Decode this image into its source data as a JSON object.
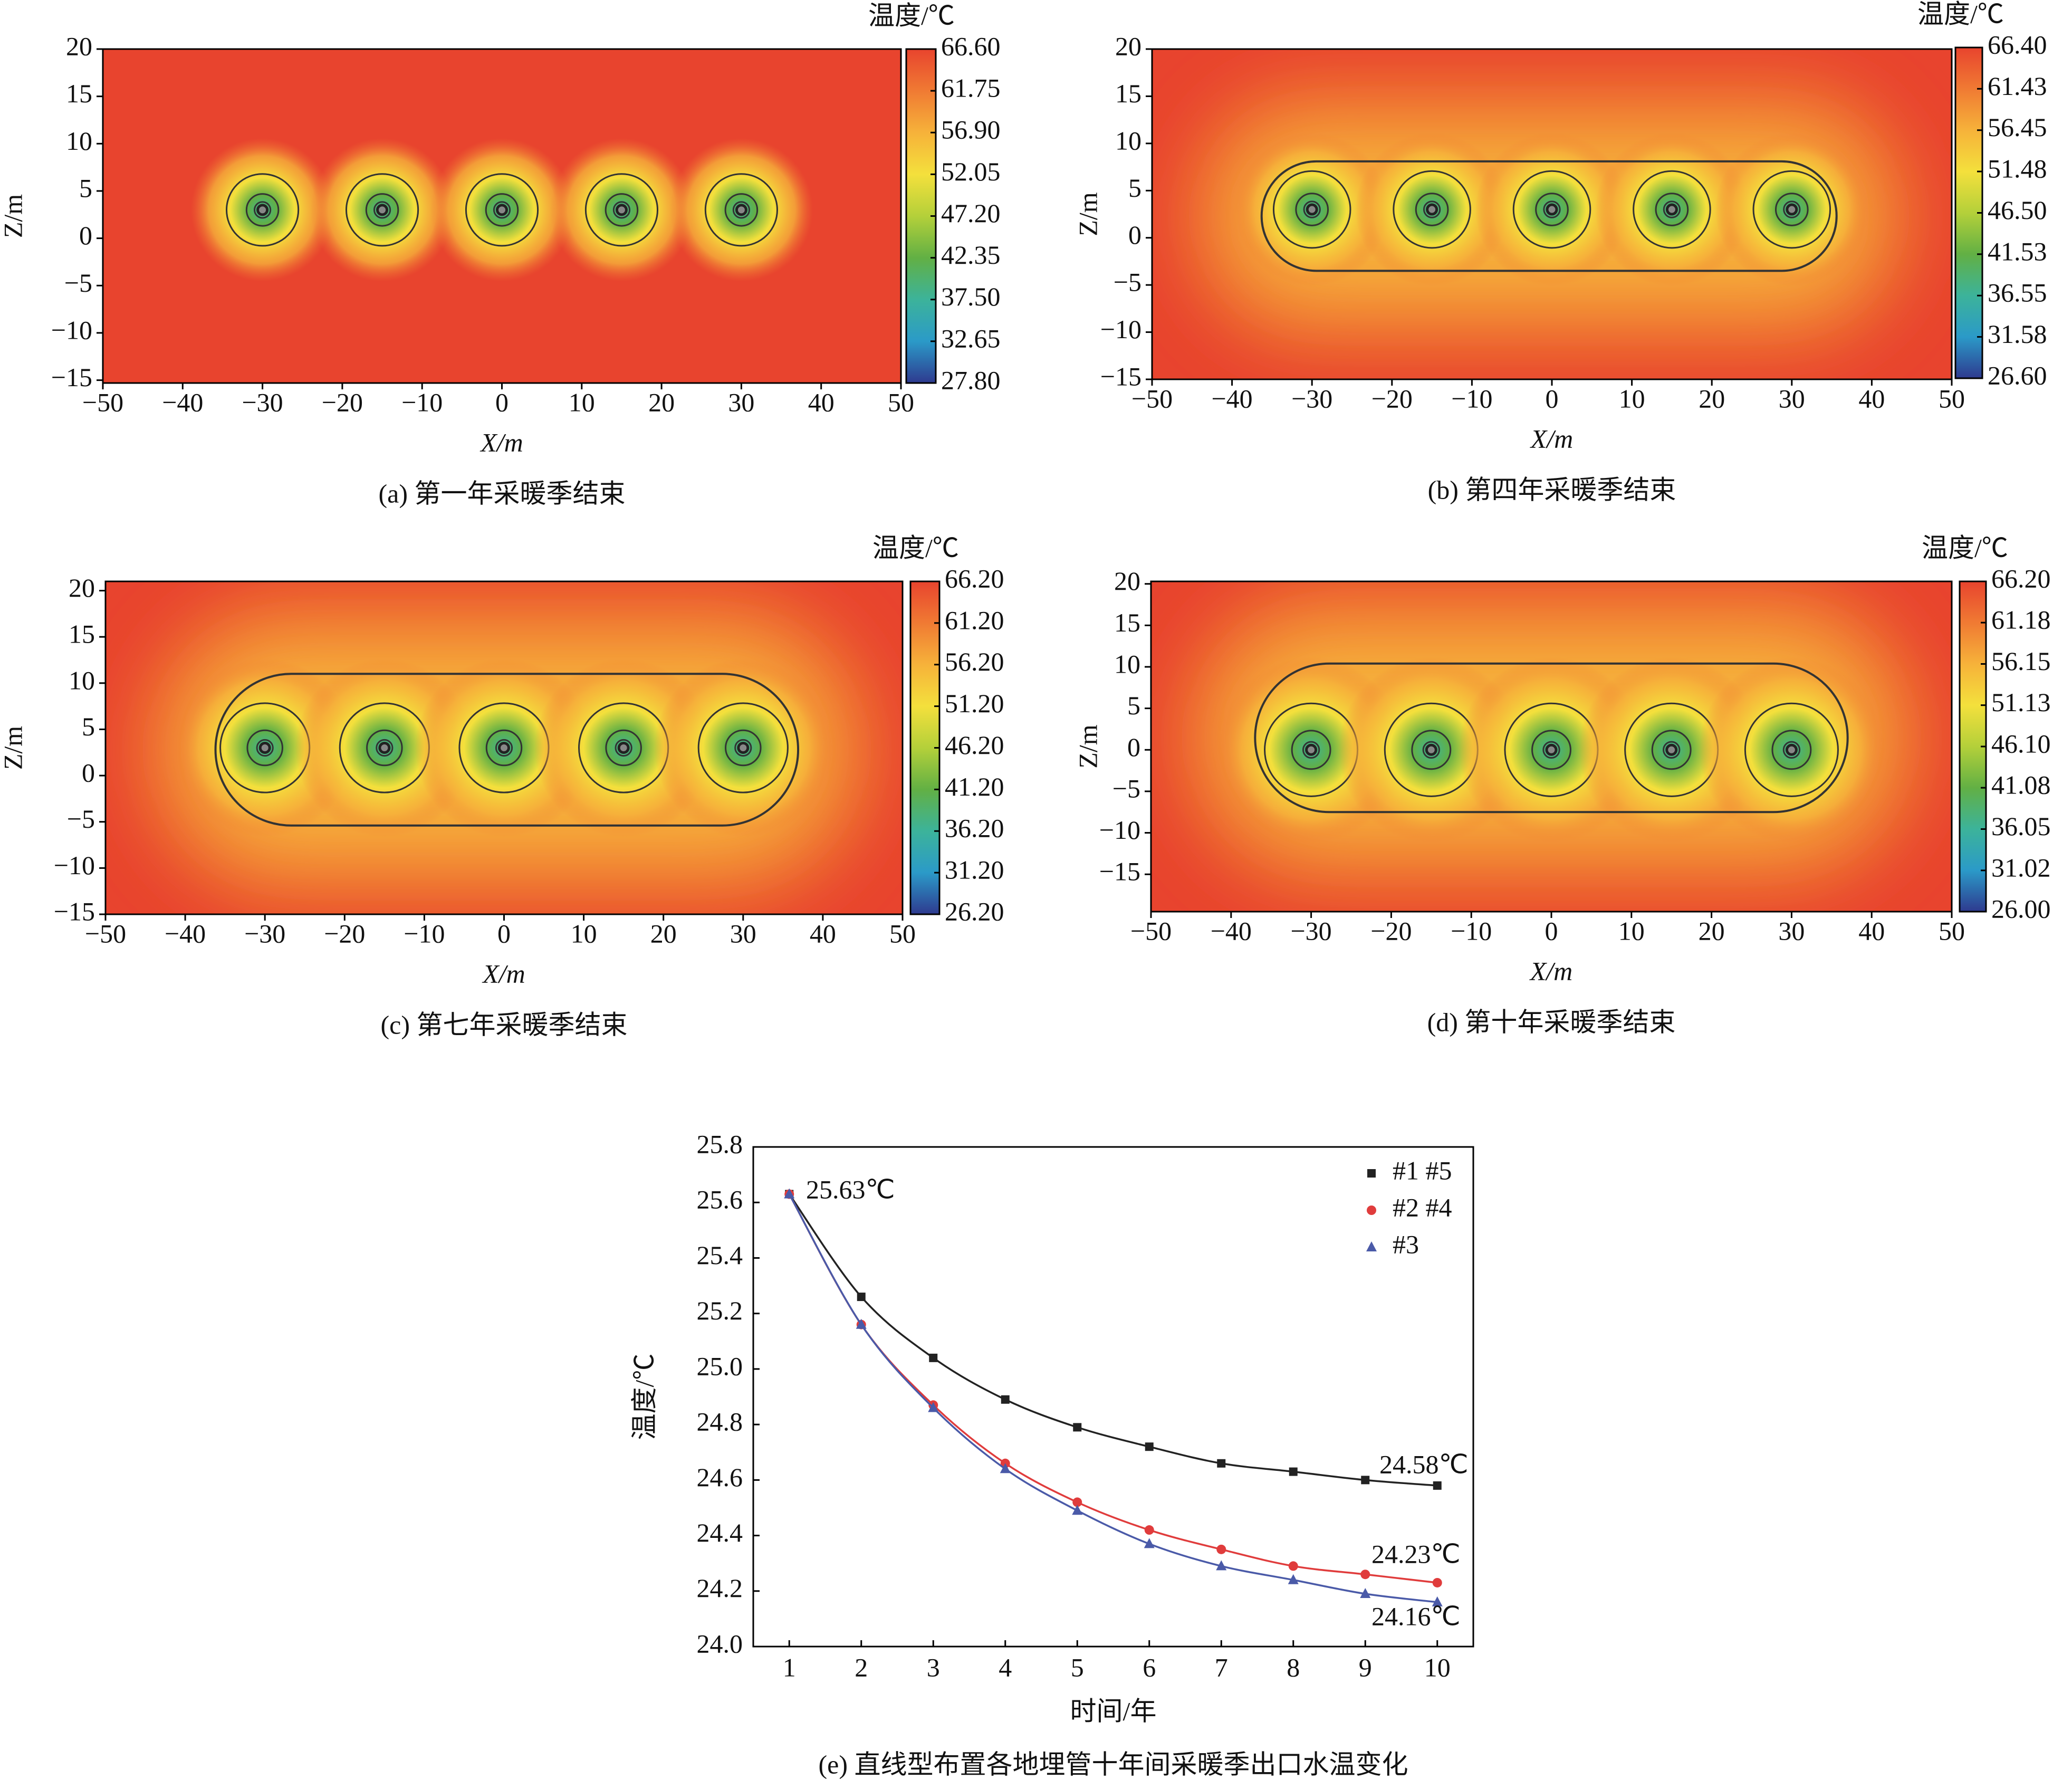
{
  "chart_data": [
    {
      "type": "contour",
      "title": "(a) 第一年采暖季结束",
      "xlabel": "X/m",
      "ylabel": "Z/m",
      "colorbar_label": "温度/℃",
      "xlim": [
        -50,
        50
      ],
      "ylim": [
        -15.3,
        20
      ],
      "xticks": [
        {
          "value": -50,
          "label": "−50"
        },
        {
          "value": -40,
          "label": "−40"
        },
        {
          "value": -30,
          "label": "−30"
        },
        {
          "value": -20,
          "label": "−20"
        },
        {
          "value": -10,
          "label": "−10"
        },
        0,
        10,
        20,
        30,
        40,
        50
      ],
      "yticks": [
        {
          "value": -15,
          "label": "−15"
        },
        {
          "value": -10,
          "label": "−10"
        },
        {
          "value": -5,
          "label": "−5"
        },
        0,
        5,
        10,
        15,
        20
      ],
      "colorbar_lim": [
        27.8,
        66.6
      ],
      "colorbar_ticks": [
        {
          "value": 27.8,
          "label": "27.80"
        },
        32.65,
        {
          "value": 37.5,
          "label": "37.50"
        },
        42.35,
        {
          "value": 47.2,
          "label": "47.20"
        },
        52.05,
        {
          "value": 56.9,
          "label": "56.90"
        },
        61.75,
        {
          "value": 66.6,
          "label": "66.60"
        }
      ],
      "colormap": [
        "#2e3a8f",
        "#2b9ac8",
        "#3cb39a",
        "#62b044",
        "#b4d03a",
        "#f4e03c",
        "#f6b23a",
        "#f07a33",
        "#e8442e"
      ],
      "boreholes": {
        "x": [
          -30,
          -15,
          0,
          15,
          30
        ],
        "z": 3
      },
      "rings": [
        4.5,
        2,
        1
      ]
    },
    {
      "type": "contour",
      "title": "(b) 第四年采暖季结束",
      "xlabel": "X/m",
      "ylabel": "Z/m",
      "colorbar_label": "温度/℃",
      "xlim": [
        -50,
        50
      ],
      "ylim": [
        -15,
        20
      ],
      "xticks": [
        {
          "value": -50,
          "label": "−50"
        },
        {
          "value": -40,
          "label": "−40"
        },
        {
          "value": -30,
          "label": "−30"
        },
        {
          "value": -20,
          "label": "−20"
        },
        {
          "value": -10,
          "label": "−10"
        },
        0,
        10,
        20,
        30,
        40,
        50
      ],
      "yticks": [
        {
          "value": -15,
          "label": "−15"
        },
        {
          "value": -10,
          "label": "−10"
        },
        {
          "value": -5,
          "label": "−5"
        },
        0,
        5,
        10,
        15,
        20
      ],
      "colorbar_lim": [
        26.6,
        66.4
      ],
      "colorbar_ticks": [
        {
          "value": 26.6,
          "label": "26.60"
        },
        31.58,
        36.55,
        41.53,
        {
          "value": 46.5,
          "label": "46.50"
        },
        51.48,
        56.45,
        61.43,
        {
          "value": 66.4,
          "label": "66.40"
        }
      ],
      "colormap": [
        "#2e3a8f",
        "#2b9ac8",
        "#3cb39a",
        "#62b044",
        "#b4d03a",
        "#f4e03c",
        "#f6b23a",
        "#f07a33",
        "#e8442e"
      ],
      "boreholes": {
        "x": [
          -30,
          -15,
          0,
          15,
          30
        ],
        "z": 3
      },
      "rings": [
        4.8,
        2,
        1
      ],
      "envelope": [
        -36.3,
        35.6,
        -3.5,
        8.1
      ]
    },
    {
      "type": "contour",
      "title": "(c) 第七年采暖季结束",
      "xlabel": "X/m",
      "ylabel": "Z/m",
      "colorbar_label": "温度/℃",
      "xlim": [
        -50,
        50
      ],
      "ylim": [
        -15,
        21
      ],
      "xticks": [
        {
          "value": -50,
          "label": "−50"
        },
        {
          "value": -40,
          "label": "−40"
        },
        {
          "value": -30,
          "label": "−30"
        },
        {
          "value": -20,
          "label": "−20"
        },
        {
          "value": -10,
          "label": "−10"
        },
        0,
        10,
        20,
        30,
        40,
        50
      ],
      "yticks": [
        {
          "value": -15,
          "label": "−15"
        },
        {
          "value": -10,
          "label": "−10"
        },
        {
          "value": -5,
          "label": "−5"
        },
        0,
        5,
        10,
        15,
        20
      ],
      "colorbar_lim": [
        26.2,
        66.2
      ],
      "colorbar_ticks": [
        {
          "value": 26.2,
          "label": "26.20"
        },
        {
          "value": 31.2,
          "label": "31.20"
        },
        {
          "value": 36.2,
          "label": "36.20"
        },
        {
          "value": 41.2,
          "label": "41.20"
        },
        {
          "value": 46.2,
          "label": "46.20"
        },
        {
          "value": 51.2,
          "label": "51.20"
        },
        {
          "value": 56.2,
          "label": "56.20"
        },
        {
          "value": 61.2,
          "label": "61.20"
        },
        {
          "value": 66.2,
          "label": "66.20"
        }
      ],
      "colormap": [
        "#2e3a8f",
        "#2b9ac8",
        "#3cb39a",
        "#62b044",
        "#b4d03a",
        "#f4e03c",
        "#f6b23a",
        "#f07a33",
        "#e8442e"
      ],
      "boreholes": {
        "x": [
          -30,
          -15,
          0,
          15,
          30
        ],
        "z": 3
      },
      "rings": [
        5.6,
        2.2,
        1
      ],
      "envelope": [
        -36.2,
        36.9,
        -5.4,
        11
      ]
    },
    {
      "type": "contour",
      "title": "(d) 第十年采暖季结束",
      "xlabel": "X/m",
      "ylabel": "Z/m",
      "colorbar_label": "温度/℃",
      "xlim": [
        -50,
        50
      ],
      "ylim": [
        -19.5,
        20.3
      ],
      "xticks": [
        {
          "value": -50,
          "label": "−50"
        },
        {
          "value": -40,
          "label": "−40"
        },
        {
          "value": -30,
          "label": "−30"
        },
        {
          "value": -20,
          "label": "−20"
        },
        {
          "value": -10,
          "label": "−10"
        },
        0,
        10,
        20,
        30,
        40,
        50
      ],
      "yticks": [
        {
          "value": -15,
          "label": "−15"
        },
        {
          "value": -10,
          "label": "−10"
        },
        {
          "value": -5,
          "label": "−5"
        },
        0,
        5,
        10,
        15,
        20
      ],
      "colorbar_lim": [
        26,
        66.2
      ],
      "colorbar_ticks": [
        {
          "value": 26,
          "label": "26.00"
        },
        31.02,
        36.05,
        41.08,
        {
          "value": 46.1,
          "label": "46.10"
        },
        51.13,
        56.15,
        61.18,
        {
          "value": 66.2,
          "label": "66.20"
        }
      ],
      "colormap": [
        "#2e3a8f",
        "#2b9ac8",
        "#3cb39a",
        "#62b044",
        "#b4d03a",
        "#f4e03c",
        "#f6b23a",
        "#f07a33",
        "#e8442e"
      ],
      "boreholes": {
        "x": [
          -30,
          -15,
          0,
          15,
          30
        ],
        "z": 0
      },
      "rings": [
        5.8,
        2.4,
        1
      ],
      "envelope": [
        -37,
        37,
        -7.5,
        10.4
      ]
    },
    {
      "type": "line",
      "title": "(e) 直线型布置各地埋管十年间采暖季出口水温变化",
      "xlabel": "时间/年",
      "ylabel": "温度/℃",
      "x": [
        1,
        2,
        3,
        4,
        5,
        6,
        7,
        8,
        9,
        10
      ],
      "xlim": [
        0.5,
        10.5
      ],
      "xticks": [
        1,
        2,
        3,
        4,
        5,
        6,
        7,
        8,
        9,
        10
      ],
      "ylim": [
        24,
        25.8
      ],
      "yticks": [
        {
          "value": 24,
          "label": "24.0"
        },
        24.2,
        24.4,
        24.6,
        24.8,
        {
          "value": 25,
          "label": "25.0"
        },
        25.2,
        25.4,
        25.6,
        25.8
      ],
      "legend": "upper right",
      "series": [
        {
          "name": "#1 #5",
          "color": "#222222",
          "marker": "square",
          "values": [
            25.63,
            25.26,
            25.04,
            24.89,
            24.79,
            24.72,
            24.66,
            24.63,
            24.6,
            24.58
          ]
        },
        {
          "name": "#2 #4",
          "color": "#e03c3c",
          "marker": "circle",
          "values": [
            25.63,
            25.16,
            24.87,
            24.66,
            24.52,
            24.42,
            24.35,
            24.29,
            24.26,
            24.23
          ]
        },
        {
          "name": "#3",
          "color": "#4a5aa8",
          "marker": "triangle",
          "values": [
            25.63,
            25.16,
            24.86,
            24.64,
            24.49,
            24.37,
            24.29,
            24.24,
            24.19,
            24.16
          ]
        }
      ],
      "annotations": [
        "25.63℃",
        "24.58℃",
        "24.23℃",
        "24.16℃"
      ]
    }
  ]
}
